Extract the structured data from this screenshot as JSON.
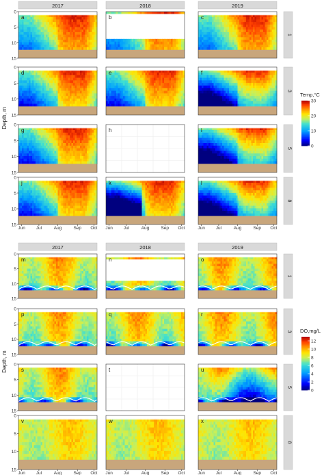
{
  "chart_data": [
    {
      "type": "heatmap",
      "variable": "Temp",
      "legend": {
        "title": "Temp,°C",
        "ticks": [
          0,
          10,
          20,
          30
        ],
        "range": [
          0,
          30
        ],
        "placement": "right"
      },
      "years": [
        "2017",
        "2018",
        "2019"
      ],
      "sites": [
        "1",
        "3",
        "5",
        "8"
      ],
      "ylabel": "Depth, m",
      "ylim": [
        15,
        0
      ],
      "yticks": [
        0,
        5,
        10,
        15
      ],
      "xticks": [
        "Jun",
        "Jul",
        "Aug",
        "Sep",
        "Oct"
      ],
      "panels": [
        {
          "label": "a",
          "year": "2017",
          "site": "1",
          "data": true
        },
        {
          "label": "b",
          "year": "2018",
          "site": "1",
          "data": true
        },
        {
          "label": "c",
          "year": "2019",
          "site": "1",
          "data": true
        },
        {
          "label": "d",
          "year": "2017",
          "site": "3",
          "data": true
        },
        {
          "label": "e",
          "year": "2018",
          "site": "3",
          "data": true
        },
        {
          "label": "f",
          "year": "2019",
          "site": "3",
          "data": true
        },
        {
          "label": "g",
          "year": "2017",
          "site": "5",
          "data": true
        },
        {
          "label": "h",
          "year": "2018",
          "site": "5",
          "data": false
        },
        {
          "label": "i",
          "year": "2019",
          "site": "5",
          "data": true
        },
        {
          "label": "j",
          "year": "2017",
          "site": "8",
          "data": true
        },
        {
          "label": "k",
          "year": "2018",
          "site": "8",
          "data": true
        },
        {
          "label": "l",
          "year": "2019",
          "site": "8",
          "data": true
        }
      ]
    },
    {
      "type": "heatmap",
      "variable": "DO",
      "legend": {
        "title": "DO,mg/L",
        "ticks": [
          0,
          2,
          4,
          6,
          8,
          10,
          12
        ],
        "range": [
          0,
          13
        ],
        "placement": "right"
      },
      "years": [
        "2017",
        "2018",
        "2019"
      ],
      "sites": [
        "1",
        "3",
        "5",
        "8"
      ],
      "ylabel": "Depth, m",
      "ylim": [
        15,
        0
      ],
      "yticks": [
        0,
        5,
        10,
        15
      ],
      "xticks": [
        "Jun",
        "Jul",
        "Aug",
        "Sep",
        "Oct"
      ],
      "panels": [
        {
          "label": "m",
          "year": "2017",
          "site": "1",
          "data": true
        },
        {
          "label": "n",
          "year": "2018",
          "site": "1",
          "data": true
        },
        {
          "label": "o",
          "year": "2019",
          "site": "1",
          "data": true
        },
        {
          "label": "p",
          "year": "2017",
          "site": "3",
          "data": true
        },
        {
          "label": "q",
          "year": "2018",
          "site": "3",
          "data": true
        },
        {
          "label": "r",
          "year": "2019",
          "site": "3",
          "data": true
        },
        {
          "label": "s",
          "year": "2017",
          "site": "5",
          "data": true
        },
        {
          "label": "t",
          "year": "2018",
          "site": "5",
          "data": false
        },
        {
          "label": "u",
          "year": "2019",
          "site": "5",
          "data": true
        },
        {
          "label": "v",
          "year": "2017",
          "site": "8",
          "data": true
        },
        {
          "label": "w",
          "year": "2018",
          "site": "8",
          "data": true
        },
        {
          "label": "x",
          "year": "2019",
          "site": "8",
          "data": true
        }
      ]
    }
  ],
  "colors": {
    "strip_fill": "#d9d9d9",
    "sediment": "#c8a67c",
    "panel_border": "#333333",
    "grid": "#ebebeb",
    "contour": "#ffffff"
  }
}
